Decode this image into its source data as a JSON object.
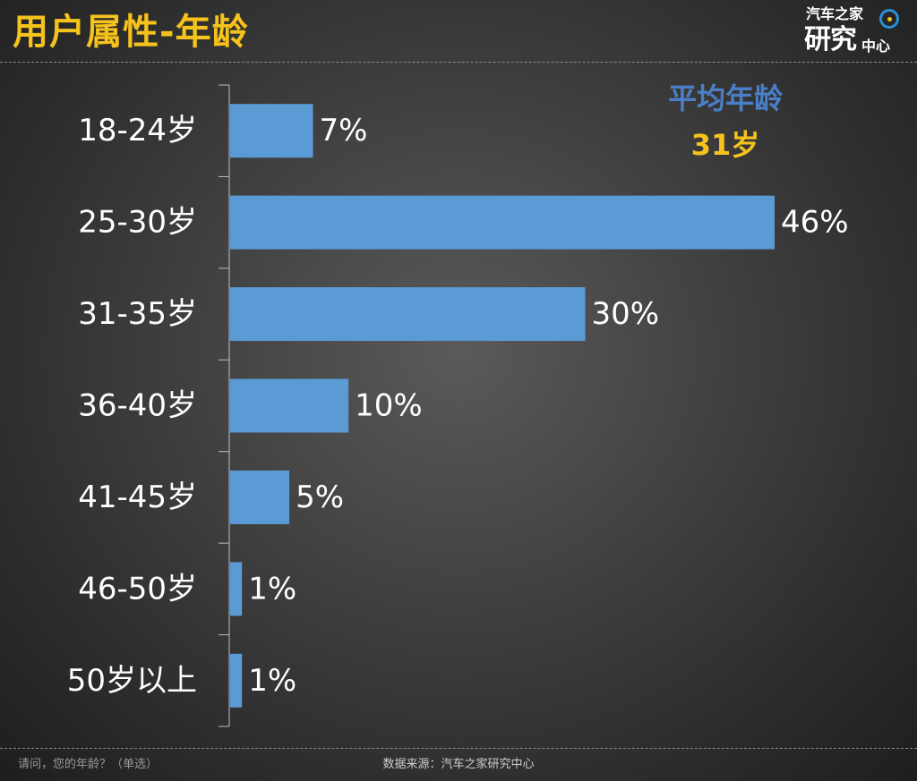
{
  "page": {
    "title": "用户属性-年龄",
    "logo": {
      "line1": "汽车之家",
      "line2": "研究",
      "line3": "中心"
    },
    "average": {
      "label": "平均年龄",
      "value": "31岁"
    },
    "footer": {
      "question": "请问，您的年龄？（单选）",
      "source": "数据来源：汽车之家研究中心"
    }
  },
  "colors": {
    "bar": "#5b9bd5",
    "title": "#f6c21c",
    "average_label": "#4a7fc8",
    "average_value": "#f6c21c"
  },
  "chart_data": {
    "type": "bar",
    "orientation": "horizontal",
    "categories": [
      "18-24岁",
      "25-30岁",
      "31-35岁",
      "36-40岁",
      "41-45岁",
      "46-50岁",
      "50岁以上"
    ],
    "values": [
      7,
      46,
      30,
      10,
      5,
      1,
      1
    ],
    "value_labels": [
      "7%",
      "46%",
      "30%",
      "10%",
      "5%",
      "1%",
      "1%"
    ],
    "unit": "%",
    "xlim": [
      0,
      46
    ],
    "grid": false,
    "legend": "none"
  }
}
